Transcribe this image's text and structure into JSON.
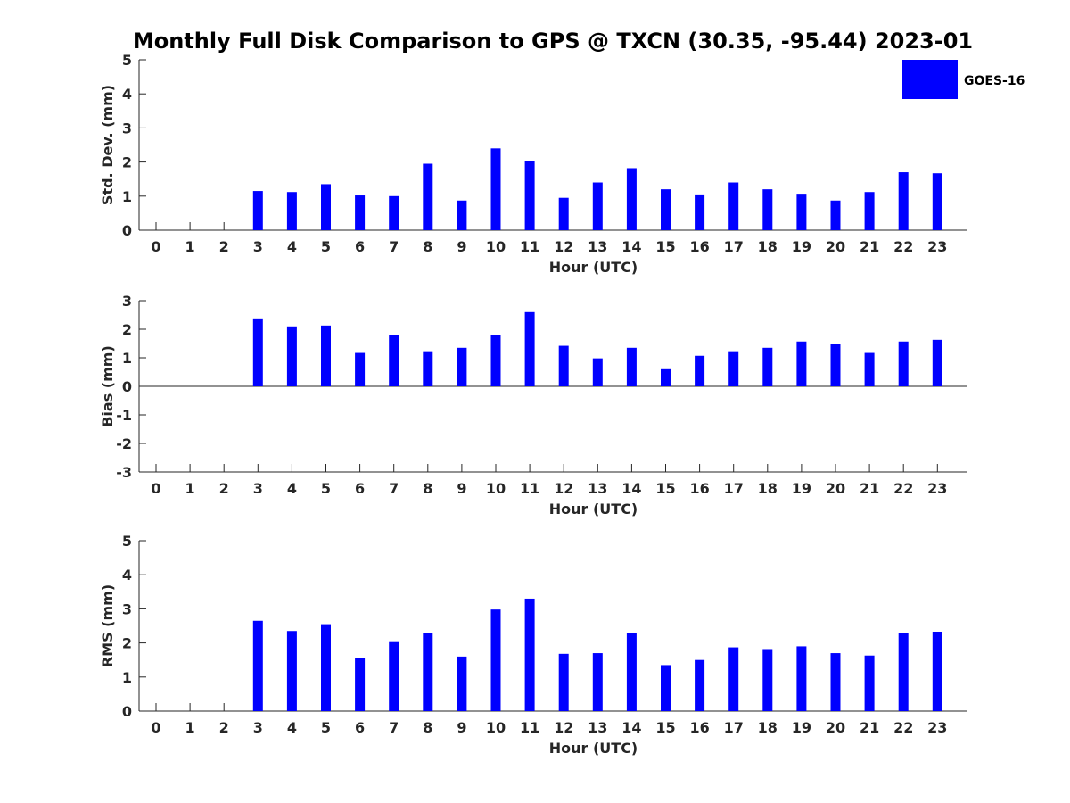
{
  "chart_data": {
    "type": "bar",
    "title": "Monthly Full Disk Comparison to GPS @ TXCN (30.35, -95.44) 2023-01",
    "bar_color": "#0000ff",
    "legend": {
      "placement": "top-right",
      "entries": [
        {
          "name": "GOES-16",
          "color": "#0000ff"
        }
      ]
    },
    "categories": [
      "0",
      "1",
      "2",
      "3",
      "4",
      "5",
      "6",
      "7",
      "8",
      "9",
      "10",
      "11",
      "12",
      "13",
      "14",
      "15",
      "16",
      "17",
      "18",
      "19",
      "20",
      "21",
      "22",
      "23"
    ],
    "panels": [
      {
        "ylabel": "Std. Dev. (mm)",
        "xlabel": "Hour (UTC)",
        "ylim": [
          0,
          5
        ],
        "yticks": [
          "0",
          "1",
          "2",
          "3",
          "4",
          "5"
        ],
        "series": [
          {
            "name": "GOES-16",
            "values": [
              null,
              null,
              null,
              1.15,
              1.12,
              1.35,
              1.02,
              1.0,
              1.95,
              0.87,
              2.4,
              2.03,
              0.95,
              1.4,
              1.82,
              1.2,
              1.05,
              1.4,
              1.2,
              1.07,
              0.87,
              1.12,
              1.7,
              1.67
            ]
          }
        ]
      },
      {
        "ylabel": "Bias (mm)",
        "xlabel": "Hour (UTC)",
        "ylim": [
          -3,
          3
        ],
        "yticks": [
          "-3",
          "-2",
          "-1",
          "0",
          "1",
          "2",
          "3"
        ],
        "series": [
          {
            "name": "GOES-16",
            "values": [
              null,
              null,
              null,
              2.38,
              2.1,
              2.13,
              1.17,
              1.8,
              1.23,
              1.35,
              1.8,
              2.6,
              1.42,
              0.98,
              1.35,
              0.6,
              1.07,
              1.23,
              1.35,
              1.57,
              1.47,
              1.17,
              1.57,
              1.63
            ]
          }
        ]
      },
      {
        "ylabel": "RMS (mm)",
        "xlabel": "Hour (UTC)",
        "ylim": [
          0,
          5
        ],
        "yticks": [
          "0",
          "1",
          "2",
          "3",
          "4",
          "5"
        ],
        "series": [
          {
            "name": "GOES-16",
            "values": [
              null,
              null,
              null,
              2.65,
              2.35,
              2.55,
              1.55,
              2.05,
              2.3,
              1.6,
              2.98,
              3.3,
              1.68,
              1.7,
              2.28,
              1.35,
              1.5,
              1.87,
              1.82,
              1.9,
              1.7,
              1.63,
              2.3,
              2.33
            ]
          }
        ]
      }
    ]
  }
}
